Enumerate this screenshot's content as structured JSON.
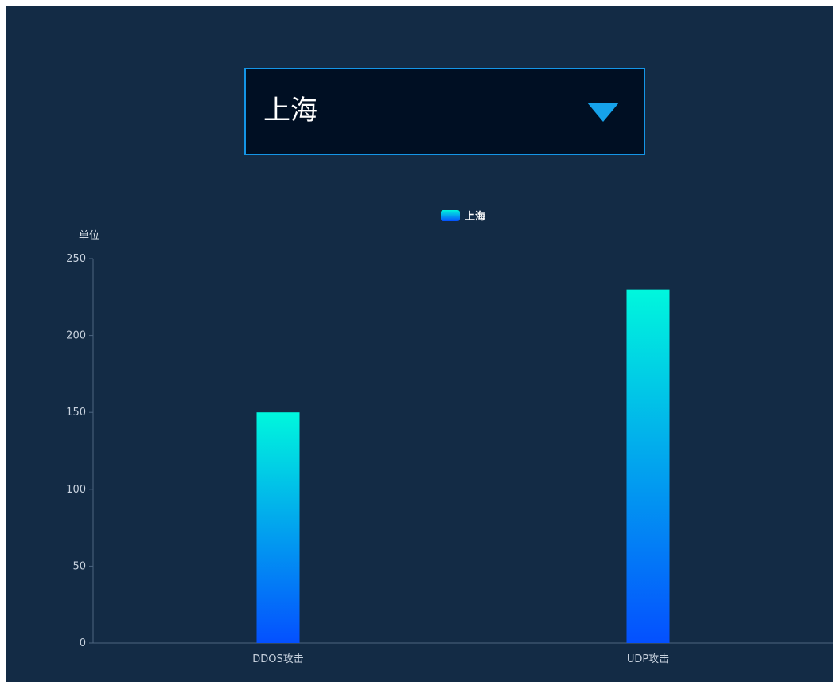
{
  "selector": {
    "selected": "上海"
  },
  "colors": {
    "bar_top": "#00f7dd",
    "bar_bottom": "#0450ff",
    "axis": "#4c6580",
    "tick_text": "#c8d2de",
    "arrow": "#16a2ea",
    "select_border": "#1495e6"
  },
  "chart_data": {
    "type": "bar",
    "categories": [
      "DDOS攻击",
      "UDP攻击"
    ],
    "series": [
      {
        "name": "上海",
        "values": [
          150,
          230
        ]
      }
    ],
    "ylabel": "单位",
    "ylim": [
      0,
      250
    ],
    "yticks": [
      0,
      50,
      100,
      150,
      200,
      250
    ],
    "legend": "top-center",
    "grid": false
  }
}
